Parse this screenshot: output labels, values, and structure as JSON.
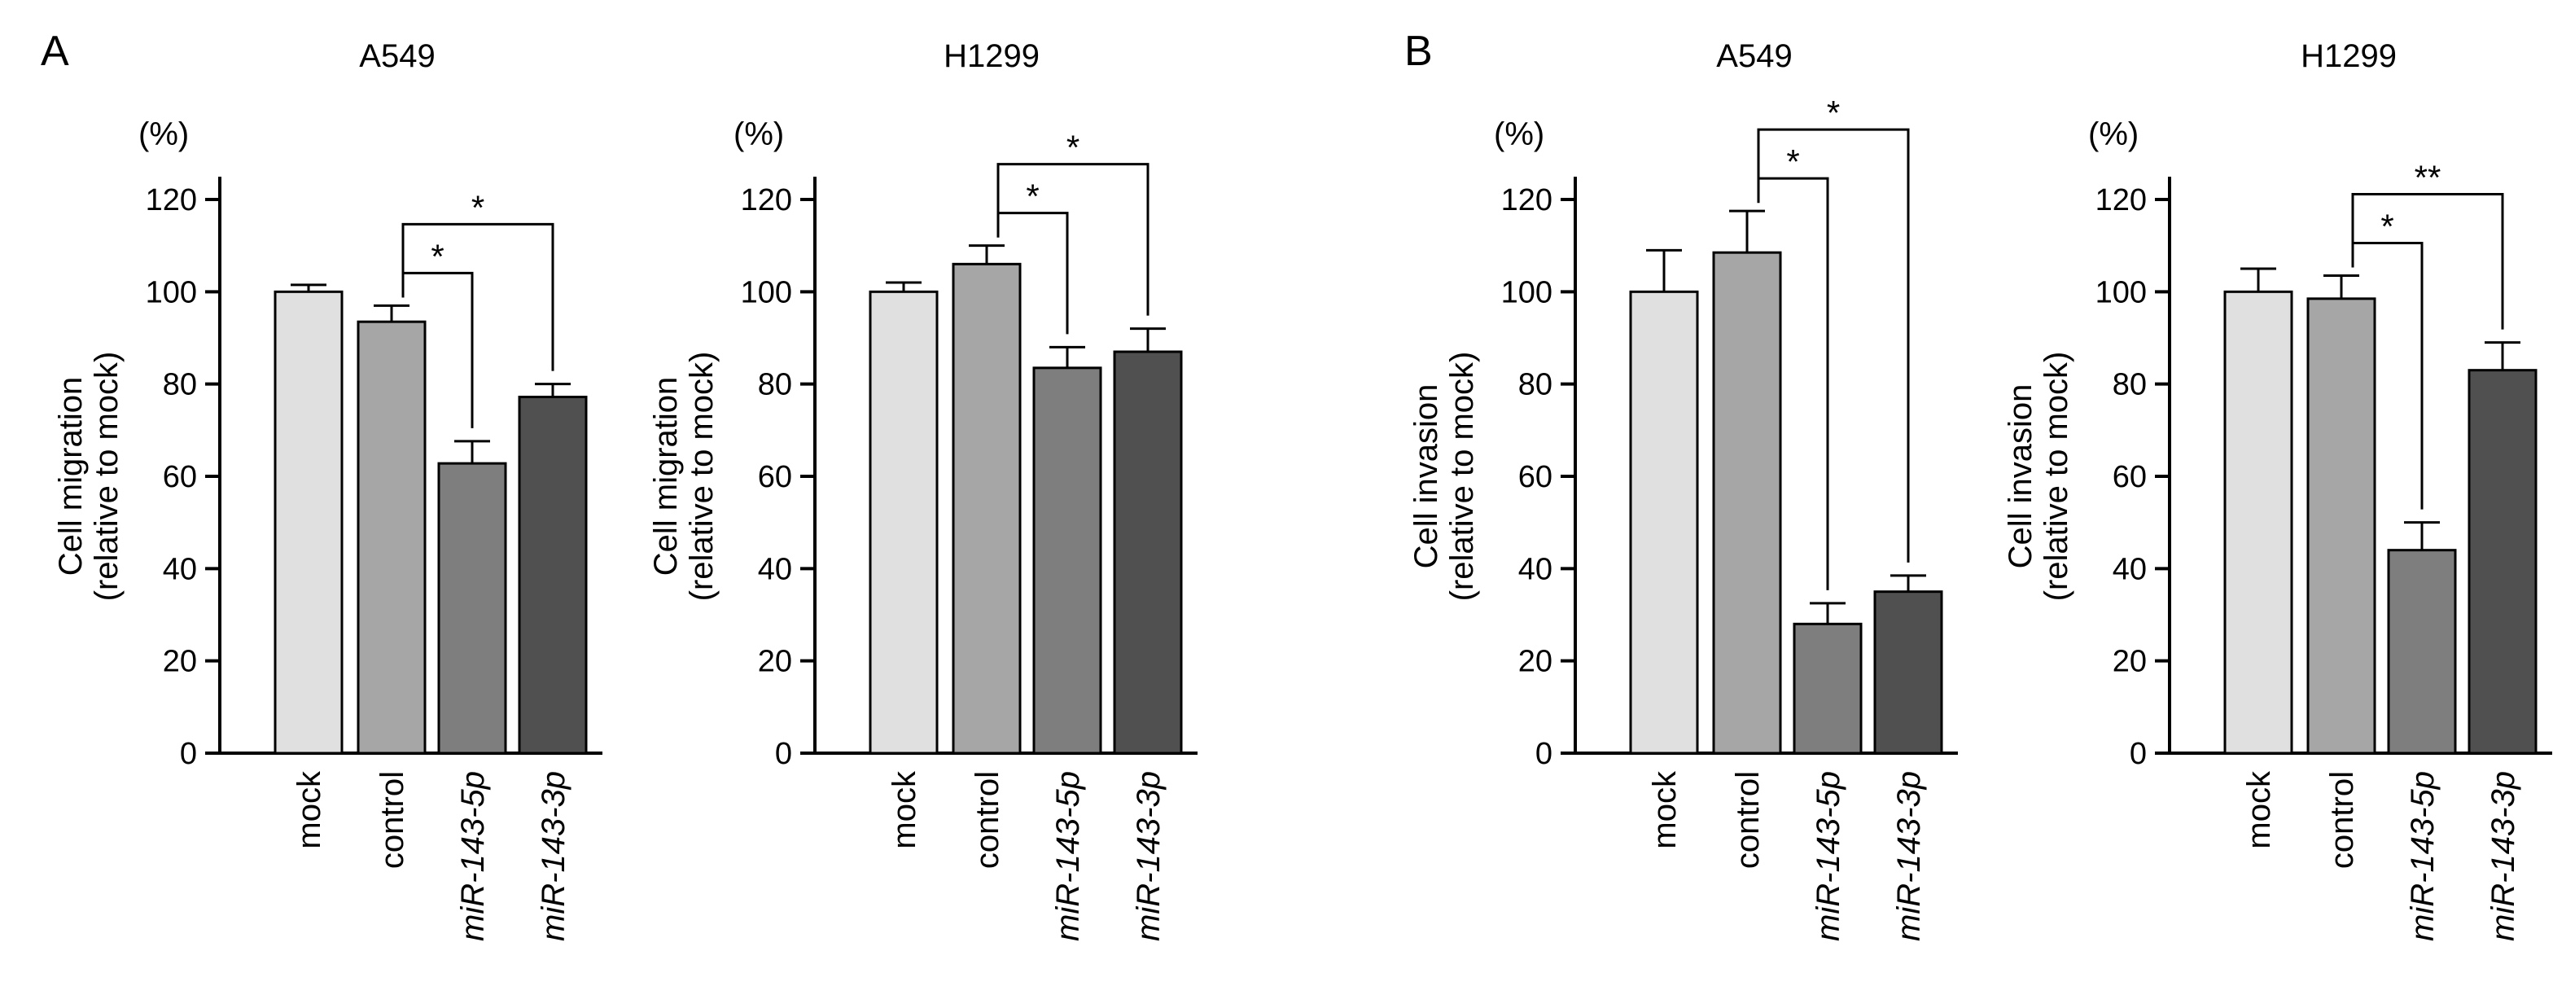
{
  "panel_labels": [
    "A",
    "B"
  ],
  "chart_data": [
    {
      "type": "bar",
      "panel": "A",
      "title": "A549",
      "unit": "(%)",
      "ylabel": [
        "Cell migration",
        "(relative to mock)"
      ],
      "xlabel": "",
      "ylim": [
        0,
        120
      ],
      "yticks": [
        0,
        20,
        40,
        60,
        80,
        100,
        120
      ],
      "grid": false,
      "categories": [
        "mock",
        "control",
        "miR-143-5p",
        "miR-143-3p"
      ],
      "values": [
        100,
        93.5,
        62.8,
        77.2
      ],
      "errors": [
        1.5,
        3.5,
        4.8,
        2.8
      ],
      "bar_colors": [
        "#e0e0e0",
        "#a6a6a6",
        "#7e7e7e",
        "#505050"
      ],
      "significance": [
        {
          "from": 1,
          "to": 2,
          "label": "*"
        },
        {
          "from": 1,
          "to": 3,
          "label": "*"
        }
      ]
    },
    {
      "type": "bar",
      "panel": "A",
      "title": "H1299",
      "unit": "(%)",
      "ylabel": [
        "Cell migration",
        "(relative to mock)"
      ],
      "xlabel": "",
      "ylim": [
        0,
        120
      ],
      "yticks": [
        0,
        20,
        40,
        60,
        80,
        100,
        120
      ],
      "grid": false,
      "categories": [
        "mock",
        "control",
        "miR-143-5p",
        "miR-143-3p"
      ],
      "values": [
        100,
        106,
        83.5,
        87
      ],
      "errors": [
        2,
        4,
        4.5,
        5
      ],
      "bar_colors": [
        "#e0e0e0",
        "#a6a6a6",
        "#7e7e7e",
        "#505050"
      ],
      "significance": [
        {
          "from": 1,
          "to": 2,
          "label": "*"
        },
        {
          "from": 1,
          "to": 3,
          "label": "*"
        }
      ]
    },
    {
      "type": "bar",
      "panel": "B",
      "title": "A549",
      "unit": "(%)",
      "ylabel": [
        "Cell invasion",
        "(relative to mock)"
      ],
      "xlabel": "",
      "ylim": [
        0,
        120
      ],
      "yticks": [
        0,
        20,
        40,
        60,
        80,
        100,
        120
      ],
      "grid": false,
      "categories": [
        "mock",
        "control",
        "miR-143-5p",
        "miR-143-3p"
      ],
      "values": [
        100,
        108.5,
        28,
        35
      ],
      "errors": [
        9,
        9,
        4.5,
        3.5
      ],
      "bar_colors": [
        "#e0e0e0",
        "#a6a6a6",
        "#7e7e7e",
        "#505050"
      ],
      "significance": [
        {
          "from": 1,
          "to": 2,
          "label": "*"
        },
        {
          "from": 1,
          "to": 3,
          "label": "*"
        }
      ]
    },
    {
      "type": "bar",
      "panel": "B",
      "title": "H1299",
      "unit": "(%)",
      "ylabel": [
        "Cell invasion",
        "(relative to mock)"
      ],
      "xlabel": "",
      "ylim": [
        0,
        120
      ],
      "yticks": [
        0,
        20,
        40,
        60,
        80,
        100,
        120
      ],
      "grid": false,
      "categories": [
        "mock",
        "control",
        "miR-143-5p",
        "miR-143-3p"
      ],
      "values": [
        100,
        98.5,
        44,
        83
      ],
      "errors": [
        5,
        5,
        6,
        6
      ],
      "bar_colors": [
        "#e0e0e0",
        "#a6a6a6",
        "#7e7e7e",
        "#505050"
      ],
      "significance": [
        {
          "from": 1,
          "to": 2,
          "label": "*"
        },
        {
          "from": 1,
          "to": 3,
          "label": "**"
        }
      ]
    }
  ]
}
